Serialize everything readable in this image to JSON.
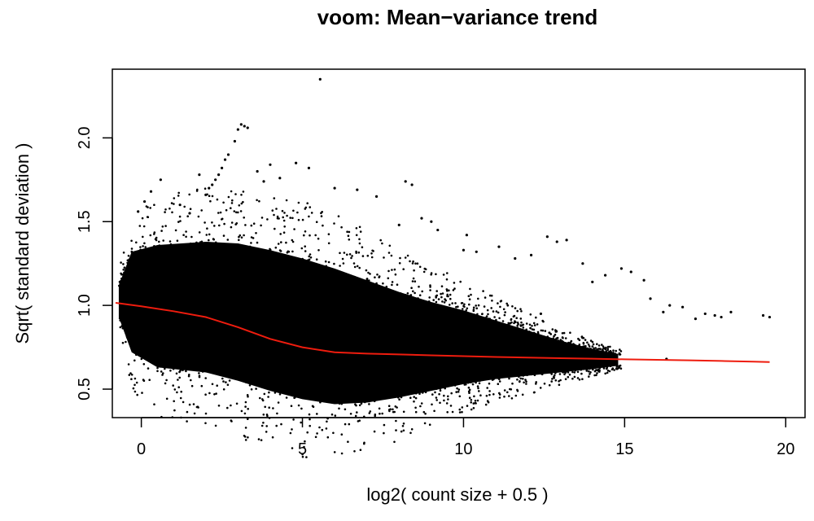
{
  "chart_data": {
    "type": "scatter",
    "title": "voom: Mean−variance trend",
    "xlabel": "log2( count size + 0.5 )",
    "ylabel": "Sqrt( standard deviation )",
    "xlim": [
      -0.9,
      20.6
    ],
    "ylim": [
      0.33,
      2.41
    ],
    "x_ticks": [
      0,
      5,
      10,
      15,
      20
    ],
    "x_tick_labels": [
      "0",
      "5",
      "10",
      "15",
      "20"
    ],
    "y_ticks": [
      0.5,
      1.0,
      1.5,
      2.0
    ],
    "y_tick_labels": [
      "0.5",
      "1.0",
      "1.5",
      "2.0"
    ],
    "grid": false,
    "colors": {
      "points": "#000000",
      "trend": "#ee1c0e"
    },
    "series": [
      {
        "kind": "points",
        "x": [
          5.55,
          3.0,
          3.1,
          3.2,
          3.3,
          2.9,
          2.7,
          2.6,
          2.5,
          2.4,
          2.3,
          2.2,
          2.1,
          1.8,
          2.0,
          4.8,
          5.2,
          4.0,
          4.3,
          3.6,
          3.8,
          6.0,
          6.7,
          7.3,
          8.2,
          8.4,
          8.7,
          9.0,
          8.0,
          9.2,
          10.1,
          10.0,
          10.4,
          11.1,
          12.1,
          11.6,
          12.6,
          12.9,
          13.2,
          13.7,
          14.0,
          14.4,
          14.9,
          15.2,
          15.6,
          15.8,
          16.2,
          16.4,
          16.8,
          17.2,
          17.5,
          17.8,
          18.3,
          18.0,
          19.3,
          19.5,
          0.6,
          0.3,
          0.1,
          -0.1,
          16.3,
          12.4,
          1.2,
          1.5
        ],
        "y": [
          2.35,
          2.05,
          2.08,
          2.07,
          2.06,
          1.98,
          1.9,
          1.87,
          1.82,
          1.78,
          1.75,
          1.72,
          1.7,
          1.78,
          1.66,
          1.85,
          1.82,
          1.84,
          1.76,
          1.8,
          1.74,
          1.7,
          1.69,
          1.65,
          1.74,
          1.72,
          1.52,
          1.5,
          1.48,
          1.45,
          1.42,
          1.33,
          1.32,
          1.35,
          1.3,
          1.28,
          1.41,
          1.38,
          1.39,
          1.25,
          1.14,
          1.18,
          1.22,
          1.2,
          1.15,
          1.04,
          0.96,
          1.0,
          0.99,
          0.92,
          0.95,
          0.94,
          0.96,
          0.93,
          0.94,
          0.93,
          1.75,
          1.68,
          1.62,
          1.56,
          0.68,
          0.95,
          1.6,
          1.55
        ]
      },
      {
        "name": "",
        "kind": "trend-line",
        "x": [
          -0.8,
          0,
          1,
          2,
          3,
          4,
          5,
          6,
          7,
          8,
          9,
          10,
          11,
          12,
          13,
          14,
          15,
          16,
          17,
          18,
          19,
          19.5
        ],
        "y": [
          1.015,
          0.995,
          0.965,
          0.93,
          0.87,
          0.8,
          0.75,
          0.72,
          0.712,
          0.707,
          0.702,
          0.697,
          0.692,
          0.688,
          0.685,
          0.682,
          0.678,
          0.675,
          0.672,
          0.668,
          0.664,
          0.662
        ]
      }
    ]
  }
}
